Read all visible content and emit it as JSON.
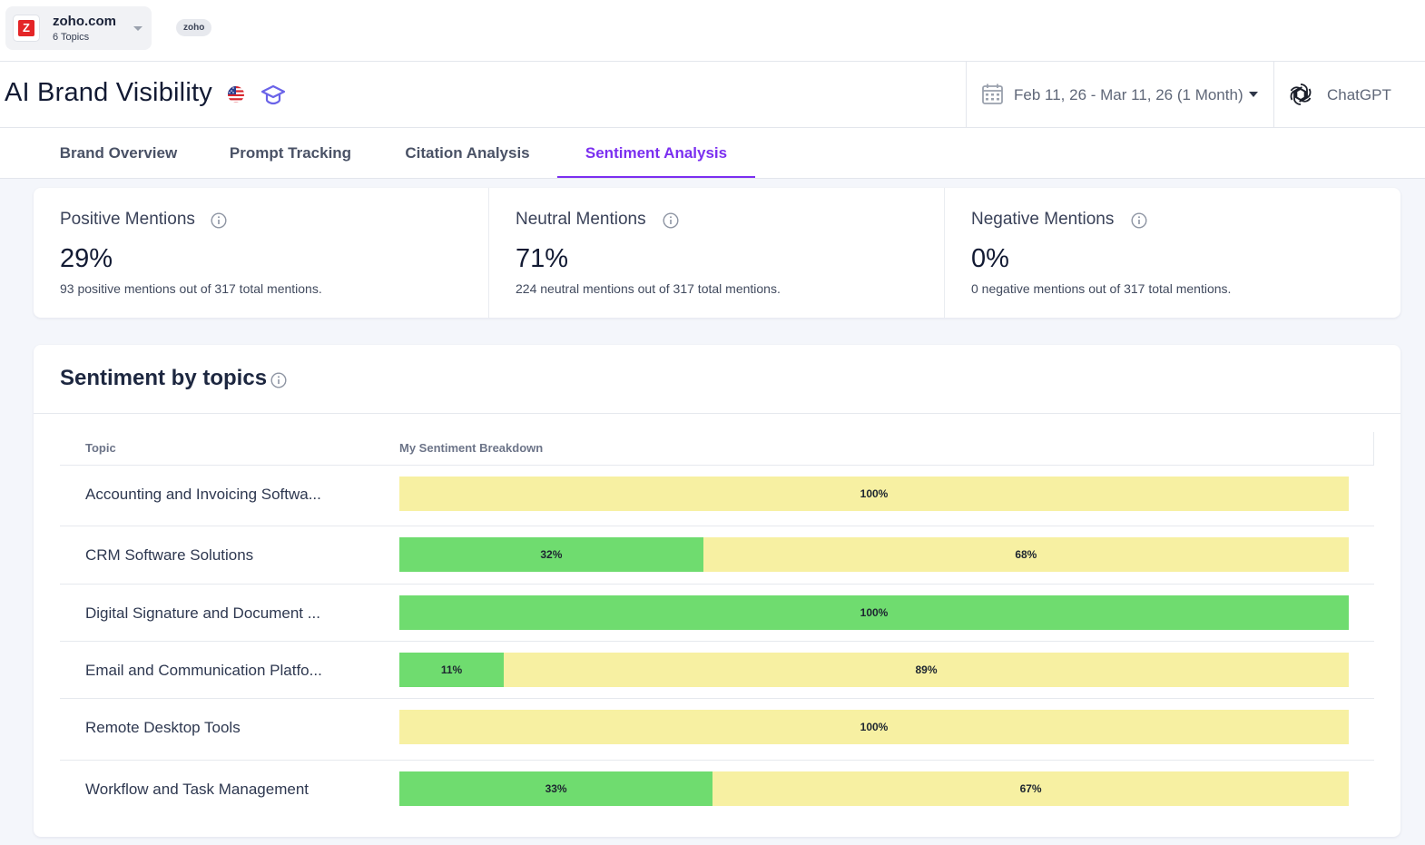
{
  "project": {
    "name": "zoho.com",
    "topics_count": "6 Topics",
    "logo_letter": "Z",
    "tag": "zoho"
  },
  "header": {
    "title": "AI Brand Visibility",
    "date_range": "Feb 11, 26 - Mar 11, 26 (1 Month)",
    "model": "ChatGPT"
  },
  "tabs": [
    {
      "label": "Brand Overview"
    },
    {
      "label": "Prompt Tracking"
    },
    {
      "label": "Citation Analysis"
    },
    {
      "label": "Sentiment Analysis",
      "active": true
    }
  ],
  "stats": [
    {
      "title": "Positive Mentions",
      "value": "29%",
      "desc": "93 positive mentions out of 317 total mentions."
    },
    {
      "title": "Neutral Mentions",
      "value": "71%",
      "desc": "224 neutral mentions out of 317 total mentions."
    },
    {
      "title": "Negative Mentions",
      "value": "0%",
      "desc": "0 negative mentions out of 317 total mentions."
    }
  ],
  "topics": {
    "title": "Sentiment by topics",
    "col_topic": "Topic",
    "col_breakdown": "My Sentiment Breakdown",
    "colors": {
      "positive": "#6fdc6f",
      "neutral": "#f7f0a2"
    },
    "rows": [
      {
        "topic": "Accounting and Invoicing Softwa...",
        "positive": 0,
        "neutral": 100
      },
      {
        "topic": "CRM Software Solutions",
        "positive": 32,
        "neutral": 68
      },
      {
        "topic": "Digital Signature and Document ...",
        "positive": 100,
        "neutral": 0
      },
      {
        "topic": "Email and Communication Platfo...",
        "positive": 11,
        "neutral": 89
      },
      {
        "topic": "Remote Desktop Tools",
        "positive": 0,
        "neutral": 100
      },
      {
        "topic": "Workflow and Task Management",
        "positive": 33,
        "neutral": 67
      }
    ]
  }
}
